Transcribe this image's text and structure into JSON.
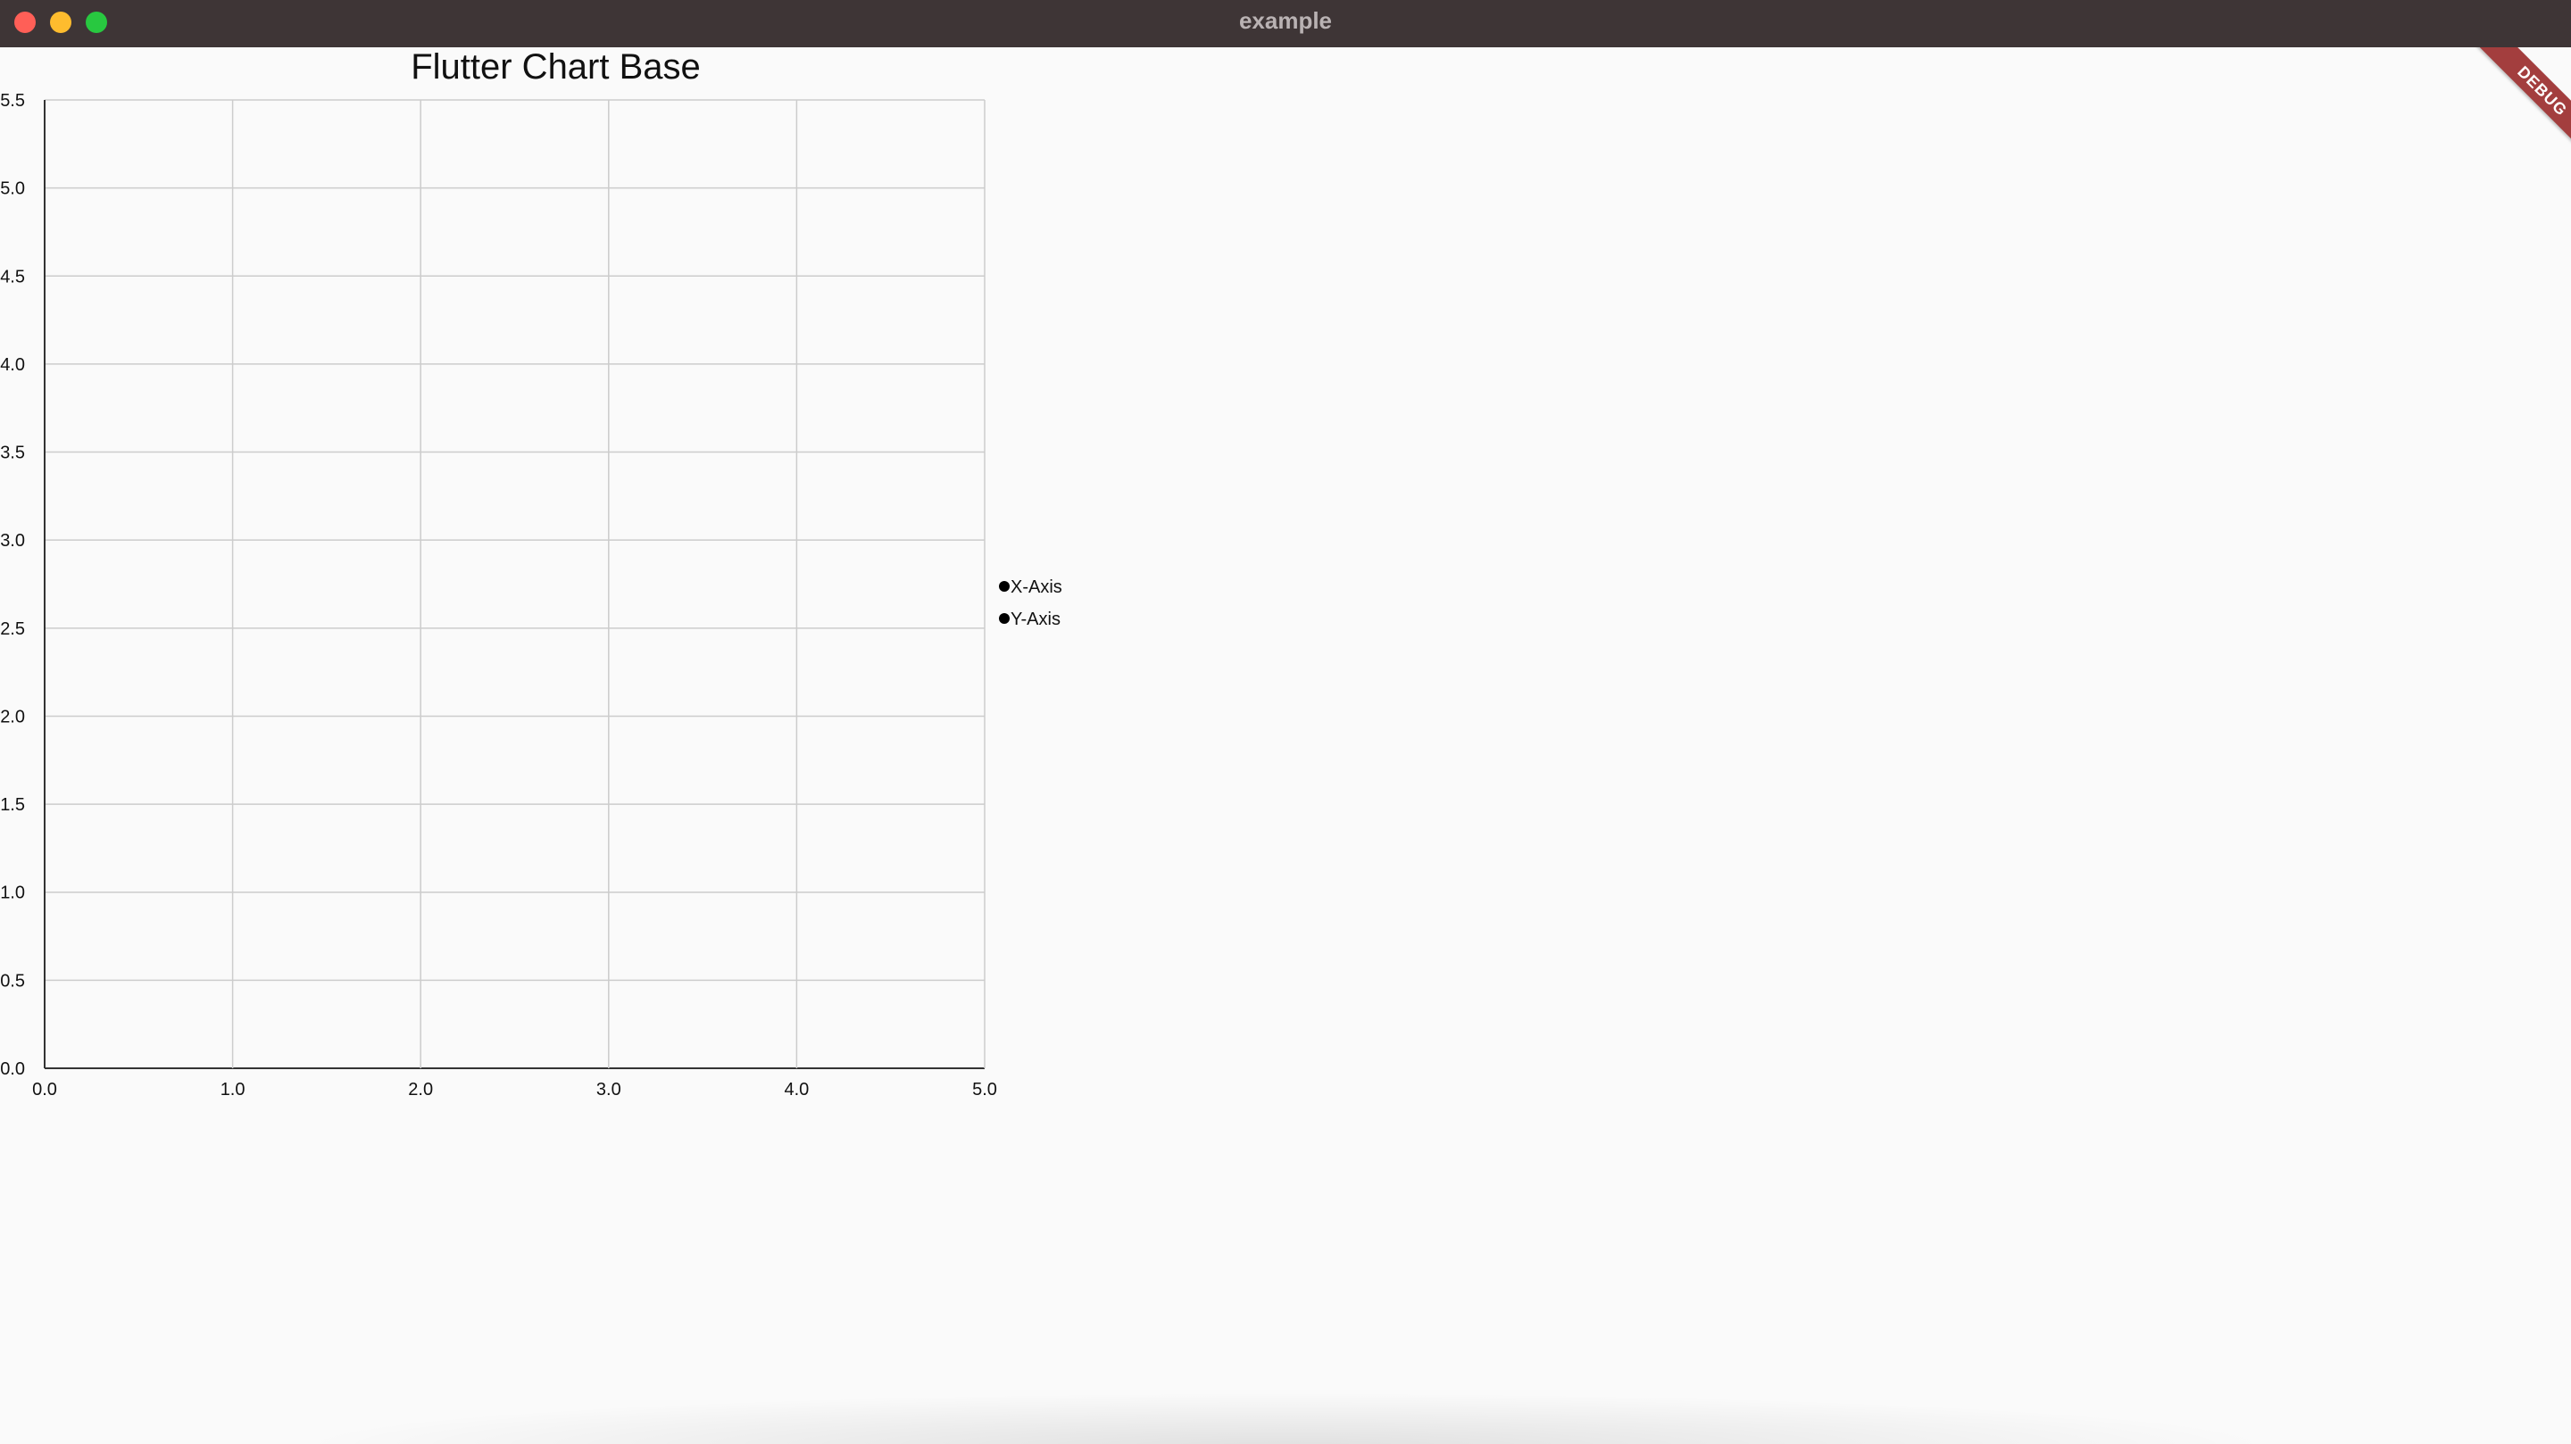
{
  "window": {
    "title": "example"
  },
  "debug_banner": {
    "label": "DEBUG",
    "color": "#a33e3e"
  },
  "chart_data": {
    "type": "line",
    "title": "Flutter Chart Base",
    "xlim": [
      0.0,
      5.0
    ],
    "ylim": [
      0.0,
      5.5
    ],
    "x_ticks": [
      "0.0",
      "1.0",
      "2.0",
      "3.0",
      "4.0",
      "5.0"
    ],
    "y_ticks": [
      "0.0",
      "0.5",
      "1.0",
      "1.5",
      "2.0",
      "2.5",
      "3.0",
      "3.5",
      "4.0",
      "4.5",
      "5.0",
      "5.5"
    ],
    "grid": true,
    "legend_placement": "right",
    "series": [
      {
        "name": "X-Axis",
        "values": []
      },
      {
        "name": "Y-Axis",
        "values": []
      }
    ],
    "grid_color": "#cccccc",
    "axis_color": "#333333"
  }
}
